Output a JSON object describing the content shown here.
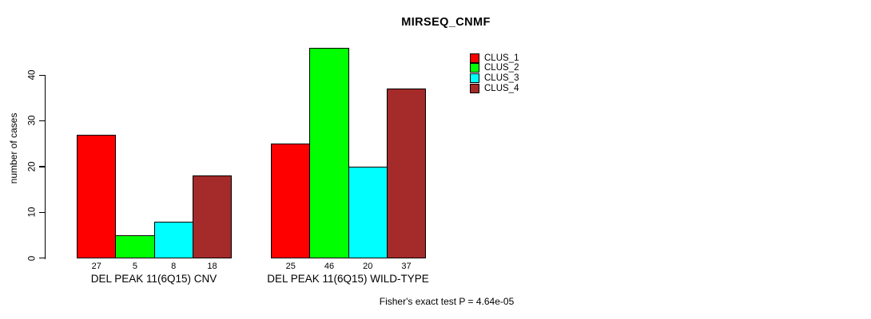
{
  "chart_data": {
    "type": "bar",
    "title": "MIRSEQ_CNMF",
    "ylabel": "number of cases",
    "xlabel": "",
    "categories": [
      "DEL PEAK 11(6Q15) CNV",
      "DEL PEAK 11(6Q15) WILD-TYPE"
    ],
    "series": [
      {
        "name": "CLUS_1",
        "color": "#FF0000",
        "values": [
          27,
          25
        ]
      },
      {
        "name": "CLUS_2",
        "color": "#00FF00",
        "values": [
          5,
          46
        ]
      },
      {
        "name": "CLUS_3",
        "color": "#00FFFF",
        "values": [
          8,
          20
        ]
      },
      {
        "name": "CLUS_4",
        "color": "#A52A2A",
        "values": [
          18,
          37
        ]
      }
    ],
    "y_ticks": [
      0,
      10,
      20,
      30,
      40
    ],
    "ylim": [
      0,
      46
    ],
    "grid": false,
    "bar_value_labels": true,
    "legend_position": "top-right-of-plot",
    "legend_entries": [
      "CLUS_1",
      "CLUS_2",
      "CLUS_3",
      "CLUS_4"
    ],
    "annotation": "Fisher's exact test P = 4.64e-05"
  }
}
